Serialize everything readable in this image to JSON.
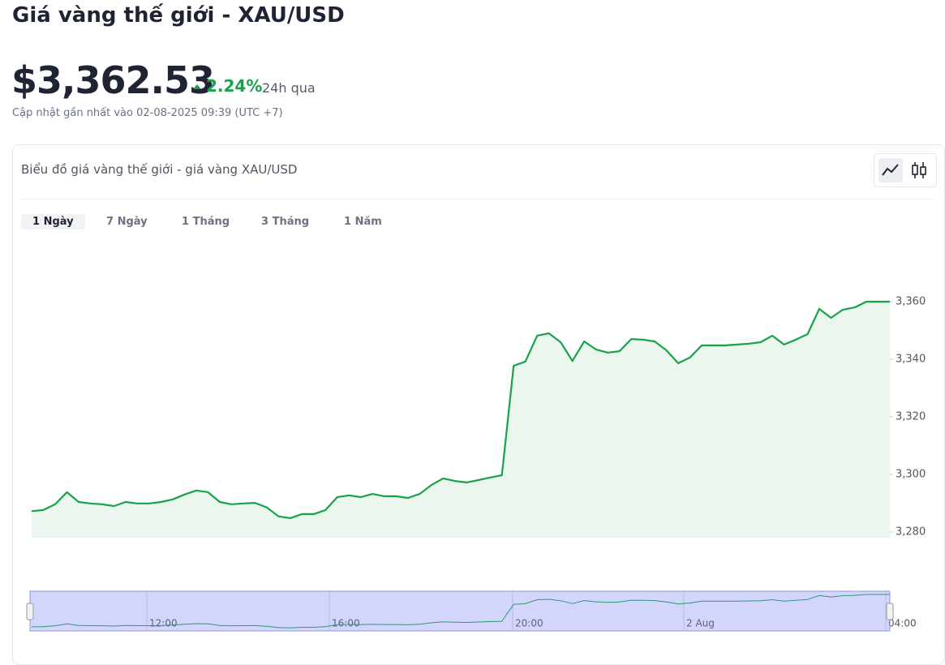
{
  "header": {
    "title": "Giá vàng thế giới - XAU/USD",
    "price": "$3,362.53",
    "change": "2.24%",
    "period": "24h qua",
    "updated": "Cập nhật gần nhất vào 02-08-2025 09:39 (UTC +7)"
  },
  "card": {
    "title": "Biểu đồ giá vàng thế giới - giá vàng XAU/USD",
    "tabs": [
      "1 Ngày",
      "7 Ngày",
      "1 Tháng",
      "3 Tháng",
      "1 Năm"
    ]
  },
  "chart_data": {
    "type": "area",
    "series": [
      {
        "name": "XAU/USD",
        "color": "#16a34a",
        "values": [
          3287.2,
          3287.6,
          3289.6,
          3293.8,
          3290.4,
          3289.9,
          3289.6,
          3289.0,
          3290.4,
          3289.9,
          3289.9,
          3290.4,
          3291.3,
          3293.0,
          3294.4,
          3293.8,
          3290.4,
          3289.6,
          3289.9,
          3290.1,
          3288.5,
          3285.4,
          3284.8,
          3286.2,
          3286.2,
          3287.6,
          3292.1,
          3292.7,
          3292.1,
          3293.2,
          3292.4,
          3292.4,
          3291.8,
          3293.2,
          3296.3,
          3298.6,
          3297.7,
          3297.2,
          3298.0,
          3298.9,
          3299.7,
          3337.7,
          3339.2,
          3348.2,
          3349.0,
          3345.9,
          3339.4,
          3346.2,
          3343.4,
          3342.3,
          3342.8,
          3347.0,
          3346.8,
          3346.2,
          3343.1,
          3338.6,
          3340.6,
          3344.8,
          3344.8,
          3344.8,
          3345.1,
          3345.4,
          3345.9,
          3348.2,
          3345.1,
          3346.8,
          3348.7,
          3357.5,
          3354.4,
          3357.2,
          3358.0,
          3360,
          3360,
          3360
        ]
      }
    ],
    "ylim": [
      3278,
      3380
    ],
    "yticks": [
      {
        "value": 3280,
        "label": "3,280"
      },
      {
        "value": 3300,
        "label": "3,300"
      },
      {
        "value": 3320,
        "label": "3,320"
      },
      {
        "value": 3340,
        "label": "3,340"
      },
      {
        "value": 3360,
        "label": "3,360"
      }
    ],
    "navigator_labels": [
      "12:00",
      "16:00",
      "20:00",
      "2 Aug",
      "04:00"
    ]
  }
}
